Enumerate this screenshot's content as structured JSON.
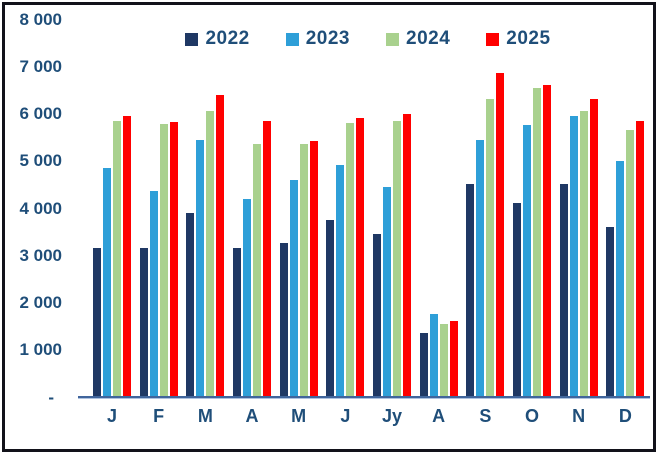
{
  "chart_data": {
    "type": "bar",
    "title": "",
    "categories": [
      "J",
      "F",
      "M",
      "A",
      "M",
      "J",
      "Jy",
      "A",
      "S",
      "O",
      "N",
      "D"
    ],
    "series": [
      {
        "name": "2022",
        "color": "#1F3864",
        "values": [
          3150,
          3150,
          3900,
          3150,
          3250,
          3750,
          3450,
          1350,
          4500,
          4100,
          4500,
          3600
        ]
      },
      {
        "name": "2023",
        "color": "#2E9FD8",
        "values": [
          4850,
          4350,
          5450,
          4200,
          4600,
          4900,
          4450,
          1750,
          5450,
          5750,
          5950,
          5000
        ]
      },
      {
        "name": "2024",
        "color": "#A9D18E",
        "values": [
          5850,
          5780,
          6050,
          5350,
          5350,
          5800,
          5850,
          1550,
          6300,
          6550,
          6050,
          5650
        ]
      },
      {
        "name": "2025",
        "color": "#FF0000",
        "values": [
          5950,
          5810,
          6400,
          5850,
          5420,
          5900,
          6000,
          1600,
          6850,
          6600,
          6300,
          5850
        ]
      }
    ],
    "ylim": [
      0,
      8000
    ],
    "y_ticks": [
      {
        "value": 8000,
        "label": "8 000"
      },
      {
        "value": 7000,
        "label": "7 000"
      },
      {
        "value": 6000,
        "label": "6 000"
      },
      {
        "value": 5000,
        "label": "5 000"
      },
      {
        "value": 4000,
        "label": "4 000"
      },
      {
        "value": 3000,
        "label": "3 000"
      },
      {
        "value": 2000,
        "label": "2 000"
      },
      {
        "value": 1000,
        "label": "1 000"
      },
      {
        "value": 0,
        "label": "-"
      }
    ],
    "legend_position": "top",
    "grid": false
  },
  "colors": {
    "text": "#1F4E79",
    "axis_line": "#40659C",
    "frame": "#12121a",
    "background": "#FFFFFF"
  }
}
